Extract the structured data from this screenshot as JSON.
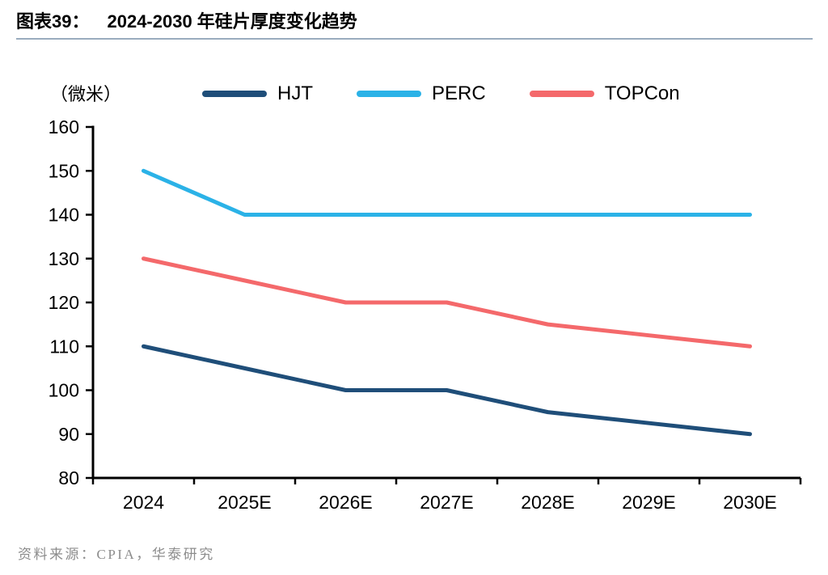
{
  "header": {
    "figure_label": "图表39：",
    "title": "2024-2030 年硅片厚度变化趋势"
  },
  "unit_label": "（微米）",
  "chart_data": {
    "type": "line",
    "title": "2024-2030 年硅片厚度变化趋势",
    "unit": "微米",
    "categories": [
      "2024",
      "2025E",
      "2026E",
      "2027E",
      "2028E",
      "2029E",
      "2030E"
    ],
    "series": [
      {
        "name": "HJT",
        "color": "#1F4E79",
        "values": [
          110,
          105,
          100,
          100,
          95,
          92.5,
          90
        ]
      },
      {
        "name": "PERC",
        "color": "#2BB2E7",
        "values": [
          150,
          140,
          140,
          140,
          140,
          140,
          140
        ]
      },
      {
        "name": "TOPCon",
        "color": "#F4696B",
        "values": [
          130,
          125,
          120,
          120,
          115,
          112.5,
          110
        ]
      }
    ],
    "ylim": [
      80,
      160
    ],
    "ytick_step": 10,
    "yticks": [
      80,
      90,
      100,
      110,
      120,
      130,
      140,
      150,
      160
    ],
    "grid": false,
    "legend_position": "top",
    "axis_color": "#000000"
  },
  "footer": {
    "source": "资料来源：CPIA，华泰研究"
  },
  "colors": {
    "title_rule": "#9AACBE",
    "source_text": "#8C8C8C"
  }
}
